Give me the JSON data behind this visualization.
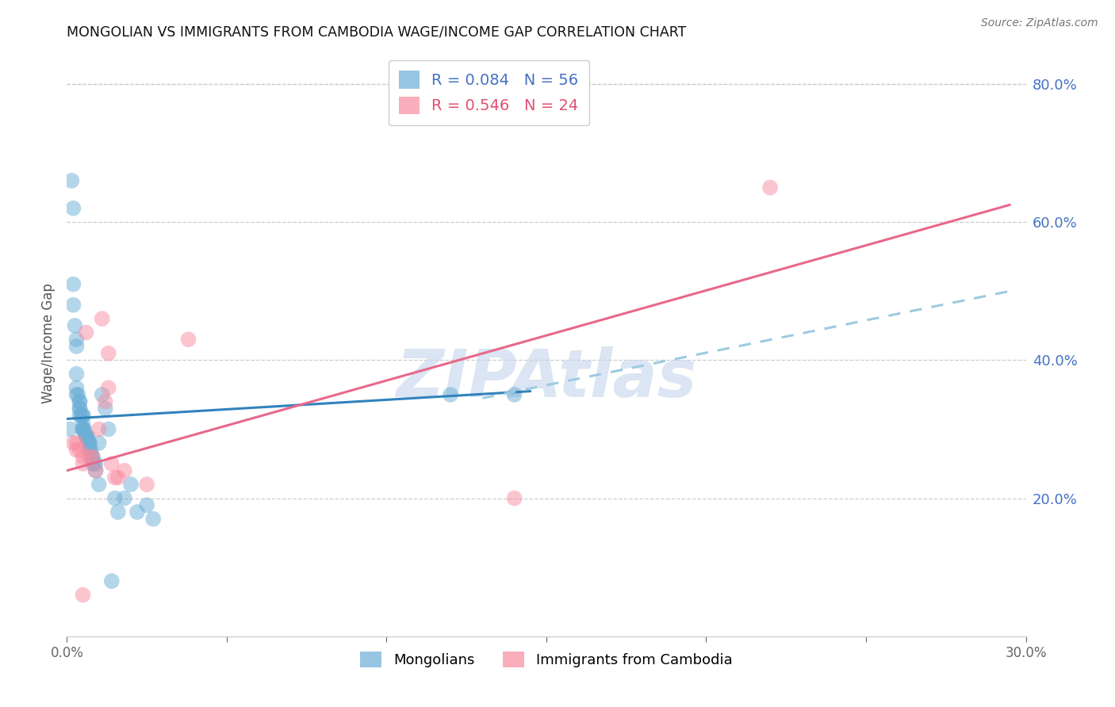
{
  "title": "MONGOLIAN VS IMMIGRANTS FROM CAMBODIA WAGE/INCOME GAP CORRELATION CHART",
  "source": "Source: ZipAtlas.com",
  "ylabel": "Wage/Income Gap",
  "xlim": [
    0.0,
    0.3
  ],
  "ylim": [
    0.0,
    0.85
  ],
  "yticks_right": [
    0.2,
    0.4,
    0.6,
    0.8
  ],
  "ytick_labels_right": [
    "20.0%",
    "40.0%",
    "60.0%",
    "80.0%"
  ],
  "legend_r1": "R = 0.084   N = 56",
  "legend_r2": "R = 0.546   N = 24",
  "mongolian_label": "Mongolians",
  "cambodia_label": "Immigrants from Cambodia",
  "blue_dot_color": "#6baed6",
  "pink_dot_color": "#f88ca0",
  "blue_line_color": "#3182bd",
  "pink_line_color": "#e8688a",
  "dashed_line_color": "#9ecae1",
  "watermark_text": "ZIPAtlas",
  "watermark_color": "#c8d8ee",
  "mongolian_x": [
    0.001,
    0.0015,
    0.002,
    0.002,
    0.002,
    0.0025,
    0.003,
    0.003,
    0.003,
    0.003,
    0.003,
    0.0035,
    0.004,
    0.004,
    0.004,
    0.004,
    0.004,
    0.0045,
    0.005,
    0.005,
    0.005,
    0.005,
    0.005,
    0.005,
    0.0055,
    0.006,
    0.006,
    0.006,
    0.006,
    0.0065,
    0.007,
    0.007,
    0.007,
    0.007,
    0.0075,
    0.008,
    0.008,
    0.008,
    0.0085,
    0.009,
    0.009,
    0.01,
    0.01,
    0.011,
    0.012,
    0.013,
    0.014,
    0.015,
    0.016,
    0.018,
    0.02,
    0.022,
    0.025,
    0.027,
    0.12,
    0.14
  ],
  "mongolian_y": [
    0.3,
    0.66,
    0.62,
    0.51,
    0.48,
    0.45,
    0.43,
    0.42,
    0.38,
    0.36,
    0.35,
    0.35,
    0.34,
    0.34,
    0.33,
    0.33,
    0.32,
    0.32,
    0.32,
    0.32,
    0.31,
    0.3,
    0.3,
    0.3,
    0.3,
    0.29,
    0.29,
    0.29,
    0.29,
    0.29,
    0.28,
    0.28,
    0.28,
    0.27,
    0.27,
    0.26,
    0.26,
    0.25,
    0.25,
    0.25,
    0.24,
    0.28,
    0.22,
    0.35,
    0.33,
    0.3,
    0.08,
    0.2,
    0.18,
    0.2,
    0.22,
    0.18,
    0.19,
    0.17,
    0.35,
    0.35
  ],
  "cambodia_x": [
    0.002,
    0.003,
    0.003,
    0.004,
    0.005,
    0.005,
    0.006,
    0.007,
    0.008,
    0.009,
    0.01,
    0.011,
    0.012,
    0.013,
    0.013,
    0.014,
    0.015,
    0.016,
    0.018,
    0.025,
    0.038,
    0.14,
    0.22,
    0.005
  ],
  "cambodia_y": [
    0.28,
    0.28,
    0.27,
    0.27,
    0.26,
    0.25,
    0.44,
    0.26,
    0.26,
    0.24,
    0.3,
    0.46,
    0.34,
    0.41,
    0.36,
    0.25,
    0.23,
    0.23,
    0.24,
    0.22,
    0.43,
    0.2,
    0.65,
    0.06
  ],
  "blue_line_x0": 0.0,
  "blue_line_x1": 0.145,
  "blue_line_y0": 0.315,
  "blue_line_y1": 0.355,
  "dash_line_x0": 0.13,
  "dash_line_x1": 0.295,
  "dash_line_y0": 0.345,
  "dash_line_y1": 0.5,
  "pink_line_x0": 0.0,
  "pink_line_x1": 0.295,
  "pink_line_y0": 0.24,
  "pink_line_y1": 0.625
}
